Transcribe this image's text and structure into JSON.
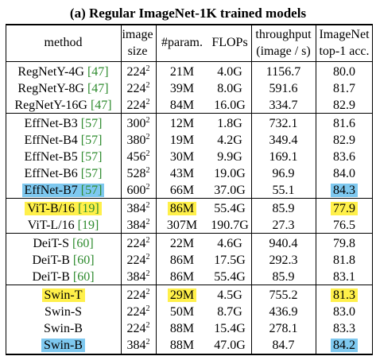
{
  "title": "(a) Regular ImageNet-1K trained models",
  "headers": {
    "method": "method",
    "image": "image",
    "size": "size",
    "params": "#param.",
    "flops": "FLOPs",
    "throughput": "throughput",
    "throughput_unit": "(image / s)",
    "imagenet": "ImageNet",
    "top1": "top-1 acc."
  },
  "colors": {
    "yellow_highlight": "#fff04a",
    "blue_highlight": "#7ec8ef",
    "citation": "#2e8b2e"
  },
  "groups": [
    {
      "rows": [
        {
          "method": "RegNetY-4G",
          "cite": "[47]",
          "res": "224",
          "params": "21M",
          "flops": "4.0G",
          "throughput": "1156.7",
          "acc": "80.0"
        },
        {
          "method": "RegNetY-8G",
          "cite": "[47]",
          "res": "224",
          "params": "39M",
          "flops": "8.0G",
          "throughput": "591.6",
          "acc": "81.7"
        },
        {
          "method": "RegNetY-16G",
          "cite": "[47]",
          "res": "224",
          "params": "84M",
          "flops": "16.0G",
          "throughput": "334.7",
          "acc": "82.9"
        }
      ]
    },
    {
      "rows": [
        {
          "method": "EffNet-B3",
          "cite": "[57]",
          "res": "300",
          "params": "12M",
          "flops": "1.8G",
          "throughput": "732.1",
          "acc": "81.6"
        },
        {
          "method": "EffNet-B4",
          "cite": "[57]",
          "res": "380",
          "params": "19M",
          "flops": "4.2G",
          "throughput": "349.4",
          "acc": "82.9"
        },
        {
          "method": "EffNet-B5",
          "cite": "[57]",
          "res": "456",
          "params": "30M",
          "flops": "9.9G",
          "throughput": "169.1",
          "acc": "83.6"
        },
        {
          "method": "EffNet-B6",
          "cite": "[57]",
          "res": "528",
          "params": "43M",
          "flops": "19.0G",
          "throughput": "96.9",
          "acc": "84.0"
        },
        {
          "method": "EffNet-B7",
          "cite": "[57]",
          "res": "600",
          "params": "66M",
          "flops": "37.0G",
          "throughput": "55.1",
          "acc": "84.3",
          "hl_method": "blue",
          "hl_acc": "blue"
        }
      ]
    },
    {
      "rows": [
        {
          "method": "ViT-B/16",
          "cite": "[19]",
          "res": "384",
          "params": "86M",
          "flops": "55.4G",
          "throughput": "85.9",
          "acc": "77.9",
          "hl_method": "yellow",
          "hl_params": "yellow",
          "hl_acc": "yellow"
        },
        {
          "method": "ViT-L/16",
          "cite": "[19]",
          "res": "384",
          "params": "307M",
          "flops": "190.7G",
          "throughput": "27.3",
          "acc": "76.5"
        }
      ]
    },
    {
      "rows": [
        {
          "method": "DeiT-S",
          "cite": "[60]",
          "res": "224",
          "params": "22M",
          "flops": "4.6G",
          "throughput": "940.4",
          "acc": "79.8"
        },
        {
          "method": "DeiT-B",
          "cite": "[60]",
          "res": "224",
          "params": "86M",
          "flops": "17.5G",
          "throughput": "292.3",
          "acc": "81.8"
        },
        {
          "method": "DeiT-B",
          "cite": "[60]",
          "res": "384",
          "params": "86M",
          "flops": "55.4G",
          "throughput": "85.9",
          "acc": "83.1"
        }
      ]
    },
    {
      "rows": [
        {
          "method": "Swin-T",
          "cite": "",
          "res": "224",
          "params": "29M",
          "flops": "4.5G",
          "throughput": "755.2",
          "acc": "81.3",
          "hl_method": "yellow",
          "hl_params": "yellow",
          "hl_acc": "yellow"
        },
        {
          "method": "Swin-S",
          "cite": "",
          "res": "224",
          "params": "50M",
          "flops": "8.7G",
          "throughput": "436.9",
          "acc": "83.0"
        },
        {
          "method": "Swin-B",
          "cite": "",
          "res": "224",
          "params": "88M",
          "flops": "15.4G",
          "throughput": "278.1",
          "acc": "83.3"
        },
        {
          "method": "Swin-B",
          "cite": "",
          "res": "384",
          "params": "88M",
          "flops": "47.0G",
          "throughput": "84.7",
          "acc": "84.2",
          "hl_method": "blue",
          "hl_acc": "blue"
        }
      ]
    }
  ]
}
